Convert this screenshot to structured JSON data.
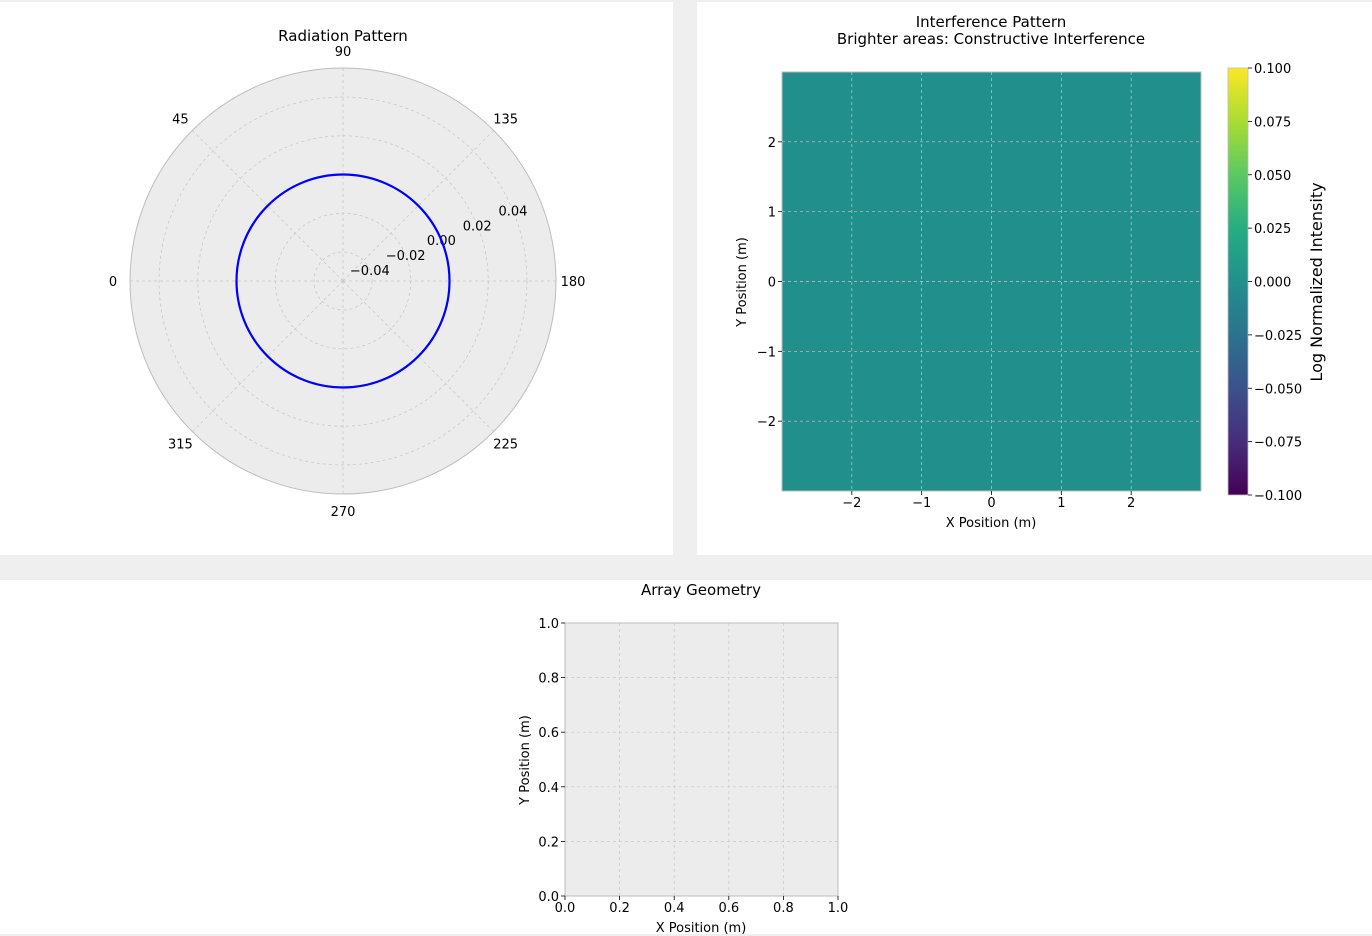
{
  "colors": {
    "figure_background": "#efefef",
    "panel_background": "#ffffff",
    "axes_background": "#ececec",
    "grid": "#c8c8c8",
    "pattern_line": "#0000ff",
    "heatmap_fill": "#21908d"
  },
  "chart_data": [
    {
      "type": "line",
      "projection": "polar",
      "title": "Radiation Pattern",
      "theta_ticks": [
        "0",
        "45",
        "90",
        "135",
        "180",
        "225",
        "270",
        "315"
      ],
      "r_ticks": [
        "−0.04",
        "−0.02",
        "0.00",
        "0.02",
        "0.04"
      ],
      "r_tick_values": [
        -0.04,
        -0.02,
        0.0,
        0.02,
        0.04
      ],
      "rlim": [
        -0.055,
        0.055
      ],
      "grid": true,
      "series": [
        {
          "color": "#0000ff",
          "values_description_free": true,
          "r_constant": 0.0
        }
      ]
    },
    {
      "type": "heatmap",
      "title": "Interference Pattern\nBrighter areas: Constructive Interference",
      "title_lines": [
        "Interference Pattern",
        "Brighter areas: Constructive Interference"
      ],
      "xlabel": "X Position (m)",
      "ylabel": "Y Position (m)",
      "xlim": [
        -3,
        3
      ],
      "ylim": [
        -3,
        3
      ],
      "x_ticks": [
        "−2",
        "−1",
        "0",
        "1",
        "2"
      ],
      "x_tick_values": [
        -2,
        -1,
        0,
        1,
        2
      ],
      "y_ticks": [
        "−2",
        "−1",
        "0",
        "1",
        "2"
      ],
      "y_tick_values": [
        -2,
        -1,
        0,
        1,
        2
      ],
      "value": 0.0,
      "grid": true,
      "colorbar": {
        "label": "Log Normalized Intensity",
        "colormap": "viridis",
        "range": [
          -0.1,
          0.1
        ],
        "ticks": [
          "0.100",
          "0.075",
          "0.050",
          "0.025",
          "0.000",
          "−0.025",
          "−0.050",
          "−0.075",
          "−0.100"
        ],
        "tick_values": [
          0.1,
          0.075,
          0.05,
          0.025,
          0.0,
          -0.025,
          -0.05,
          -0.075,
          -0.1
        ]
      }
    },
    {
      "type": "scatter",
      "title": "Array Geometry",
      "xlabel": "X Position (m)",
      "ylabel": "Y Position (m)",
      "xlim": [
        0,
        1
      ],
      "ylim": [
        0,
        1
      ],
      "x_ticks": [
        "0.0",
        "0.2",
        "0.4",
        "0.6",
        "0.8",
        "1.0"
      ],
      "x_tick_values": [
        0,
        0.2,
        0.4,
        0.6,
        0.8,
        1.0
      ],
      "y_ticks": [
        "0.0",
        "0.2",
        "0.4",
        "0.6",
        "0.8",
        "1.0"
      ],
      "y_tick_values": [
        0,
        0.2,
        0.4,
        0.6,
        0.8,
        1.0
      ],
      "points": [],
      "grid": true
    }
  ]
}
